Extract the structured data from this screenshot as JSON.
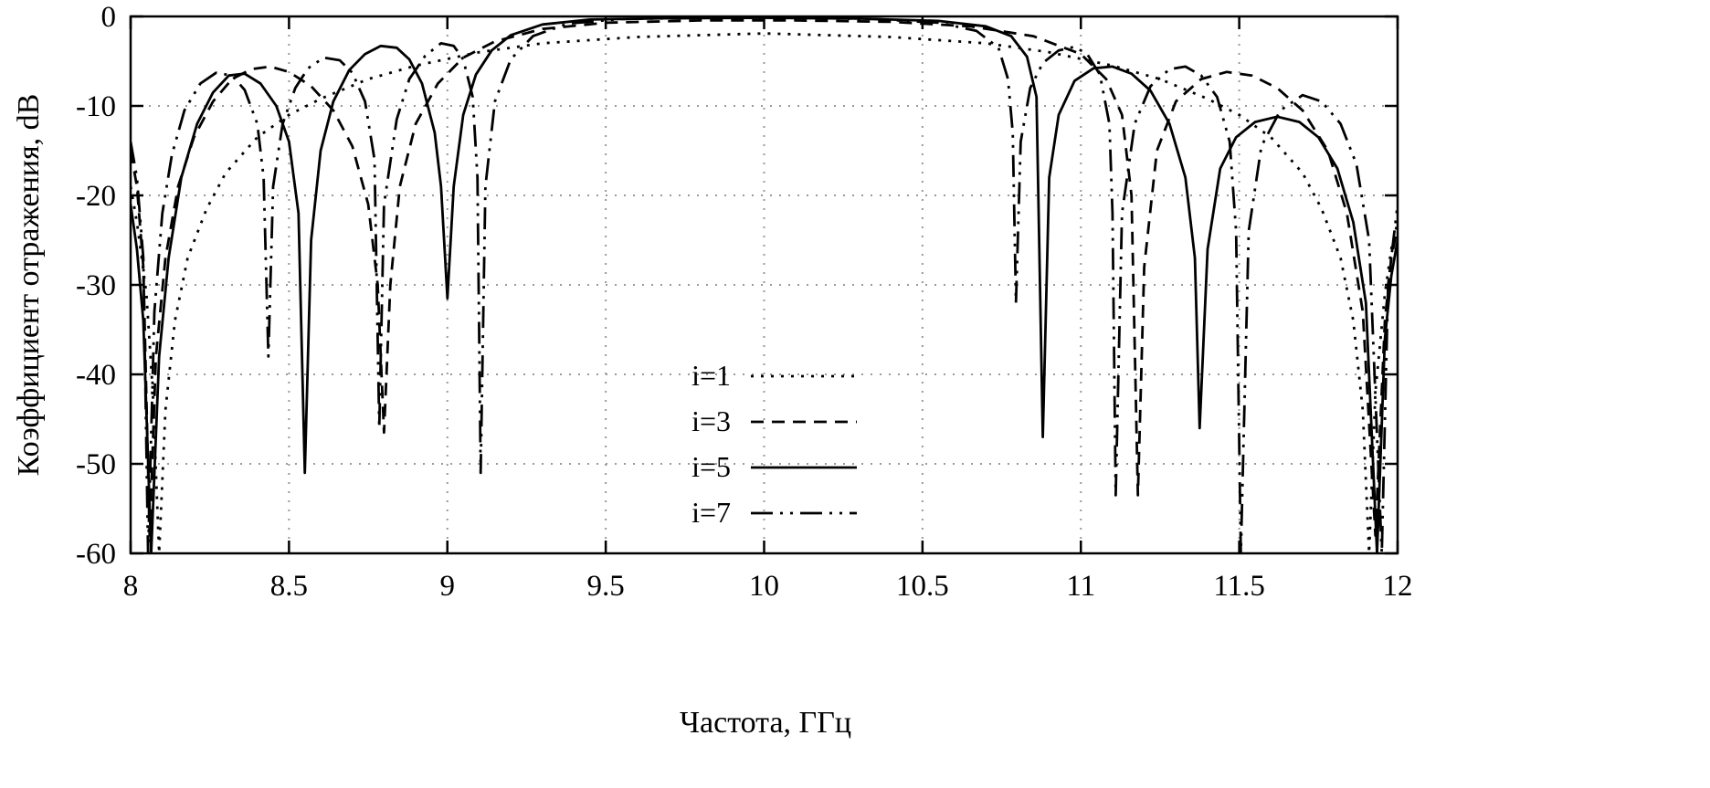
{
  "chart_data": {
    "type": "line",
    "title": "",
    "xlabel": "Частота, ГГц",
    "ylabel": "Коэффициент отражения, dB",
    "xlim": [
      8,
      12
    ],
    "ylim": [
      -60,
      0
    ],
    "grid": true,
    "legend_position": "center-bottom",
    "line_color": "#000000",
    "grid_color": "#999999",
    "xticks": [
      {
        "v": 8,
        "label": "8"
      },
      {
        "v": 8.5,
        "label": "8.5"
      },
      {
        "v": 9,
        "label": "9"
      },
      {
        "v": 9.5,
        "label": "9.5"
      },
      {
        "v": 10,
        "label": "10"
      },
      {
        "v": 10.5,
        "label": "10.5"
      },
      {
        "v": 11,
        "label": "11"
      },
      {
        "v": 11.5,
        "label": "11.5"
      },
      {
        "v": 12,
        "label": "12"
      }
    ],
    "yticks": [
      {
        "v": 0,
        "label": "0"
      },
      {
        "v": -10,
        "label": "-10"
      },
      {
        "v": -20,
        "label": "-20"
      },
      {
        "v": -30,
        "label": "-30"
      },
      {
        "v": -40,
        "label": "-40"
      },
      {
        "v": -50,
        "label": "-50"
      },
      {
        "v": -60,
        "label": "-60"
      }
    ],
    "series": [
      {
        "name": "i=1",
        "style": "dotted",
        "points": [
          [
            8.0,
            -19
          ],
          [
            8.02,
            -23
          ],
          [
            8.05,
            -31
          ],
          [
            8.07,
            -42
          ],
          [
            8.09,
            -60
          ],
          [
            8.11,
            -44
          ],
          [
            8.14,
            -34
          ],
          [
            8.18,
            -27
          ],
          [
            8.24,
            -21.5
          ],
          [
            8.3,
            -17.5
          ],
          [
            8.4,
            -13.5
          ],
          [
            8.5,
            -11
          ],
          [
            8.6,
            -9.2
          ],
          [
            8.75,
            -7
          ],
          [
            8.9,
            -5.5
          ],
          [
            9.1,
            -4
          ],
          [
            9.3,
            -3
          ],
          [
            9.6,
            -2.3
          ],
          [
            10.0,
            -1.9
          ],
          [
            10.4,
            -2.3
          ],
          [
            10.7,
            -3
          ],
          [
            10.9,
            -4
          ],
          [
            11.1,
            -5.5
          ],
          [
            11.25,
            -7
          ],
          [
            11.4,
            -9.2
          ],
          [
            11.5,
            -11
          ],
          [
            11.6,
            -13.5
          ],
          [
            11.7,
            -17.5
          ],
          [
            11.76,
            -21.5
          ],
          [
            11.82,
            -27
          ],
          [
            11.86,
            -34
          ],
          [
            11.89,
            -44
          ],
          [
            11.91,
            -60
          ],
          [
            11.93,
            -42
          ],
          [
            11.96,
            -31
          ],
          [
            11.98,
            -26
          ],
          [
            12.0,
            -23
          ]
        ]
      },
      {
        "name": "i=3",
        "style": "dashed",
        "points": [
          [
            8.0,
            -15
          ],
          [
            8.02,
            -19
          ],
          [
            8.04,
            -28
          ],
          [
            8.06,
            -58
          ],
          [
            8.08,
            -38
          ],
          [
            8.11,
            -27
          ],
          [
            8.15,
            -19
          ],
          [
            8.2,
            -13.5
          ],
          [
            8.26,
            -9.5
          ],
          [
            8.32,
            -7
          ],
          [
            8.38,
            -5.9
          ],
          [
            8.44,
            -5.6
          ],
          [
            8.5,
            -6.2
          ],
          [
            8.57,
            -7.8
          ],
          [
            8.64,
            -10.5
          ],
          [
            8.7,
            -14.5
          ],
          [
            8.75,
            -21
          ],
          [
            8.78,
            -30
          ],
          [
            8.8,
            -46.5
          ],
          [
            8.82,
            -30
          ],
          [
            8.85,
            -19
          ],
          [
            8.9,
            -12
          ],
          [
            8.97,
            -7.5
          ],
          [
            9.05,
            -4.6
          ],
          [
            9.15,
            -2.8
          ],
          [
            9.3,
            -1.4
          ],
          [
            9.5,
            -0.7
          ],
          [
            9.8,
            -0.45
          ],
          [
            10.1,
            -0.45
          ],
          [
            10.4,
            -0.6
          ],
          [
            10.65,
            -1.1
          ],
          [
            10.85,
            -2.2
          ],
          [
            11.0,
            -4.2
          ],
          [
            11.08,
            -7
          ],
          [
            11.13,
            -11
          ],
          [
            11.16,
            -20
          ],
          [
            11.18,
            -53.5
          ],
          [
            11.2,
            -28
          ],
          [
            11.24,
            -15
          ],
          [
            11.3,
            -9.5
          ],
          [
            11.38,
            -7
          ],
          [
            11.46,
            -6.2
          ],
          [
            11.54,
            -6.6
          ],
          [
            11.62,
            -8
          ],
          [
            11.7,
            -10.5
          ],
          [
            11.78,
            -15
          ],
          [
            11.84,
            -22
          ],
          [
            11.89,
            -33
          ],
          [
            11.93,
            -58
          ],
          [
            11.96,
            -34
          ],
          [
            11.98,
            -27
          ],
          [
            12.0,
            -23.5
          ]
        ]
      },
      {
        "name": "i=5",
        "style": "solid",
        "points": [
          [
            8.0,
            -21
          ],
          [
            8.02,
            -26
          ],
          [
            8.04,
            -34
          ],
          [
            8.065,
            -60
          ],
          [
            8.09,
            -38
          ],
          [
            8.12,
            -27
          ],
          [
            8.16,
            -18
          ],
          [
            8.21,
            -12
          ],
          [
            8.26,
            -8.5
          ],
          [
            8.31,
            -6.6
          ],
          [
            8.36,
            -6.4
          ],
          [
            8.41,
            -7.5
          ],
          [
            8.46,
            -10
          ],
          [
            8.5,
            -14
          ],
          [
            8.53,
            -22
          ],
          [
            8.55,
            -51
          ],
          [
            8.57,
            -25
          ],
          [
            8.6,
            -15
          ],
          [
            8.64,
            -9.5
          ],
          [
            8.69,
            -6
          ],
          [
            8.74,
            -4.2
          ],
          [
            8.79,
            -3.3
          ],
          [
            8.84,
            -3.5
          ],
          [
            8.88,
            -4.8
          ],
          [
            8.92,
            -7.5
          ],
          [
            8.96,
            -13
          ],
          [
            8.98,
            -19
          ],
          [
            9.0,
            -31.5
          ],
          [
            9.02,
            -19
          ],
          [
            9.05,
            -11
          ],
          [
            9.09,
            -6.5
          ],
          [
            9.14,
            -3.8
          ],
          [
            9.2,
            -2.1
          ],
          [
            9.3,
            -0.9
          ],
          [
            9.45,
            -0.35
          ],
          [
            9.7,
            -0.2
          ],
          [
            10.0,
            -0.15
          ],
          [
            10.3,
            -0.25
          ],
          [
            10.55,
            -0.5
          ],
          [
            10.7,
            -1.1
          ],
          [
            10.78,
            -2.2
          ],
          [
            10.83,
            -4.5
          ],
          [
            10.86,
            -9
          ],
          [
            10.88,
            -47
          ],
          [
            10.9,
            -18
          ],
          [
            10.93,
            -11
          ],
          [
            10.98,
            -7.2
          ],
          [
            11.04,
            -5.8
          ],
          [
            11.1,
            -5.6
          ],
          [
            11.16,
            -6.4
          ],
          [
            11.22,
            -8.3
          ],
          [
            11.28,
            -12
          ],
          [
            11.33,
            -18
          ],
          [
            11.36,
            -27
          ],
          [
            11.375,
            -46
          ],
          [
            11.4,
            -26
          ],
          [
            11.44,
            -17
          ],
          [
            11.49,
            -13.5
          ],
          [
            11.55,
            -11.8
          ],
          [
            11.62,
            -11.2
          ],
          [
            11.69,
            -11.8
          ],
          [
            11.75,
            -13.5
          ],
          [
            11.81,
            -17
          ],
          [
            11.86,
            -23
          ],
          [
            11.9,
            -32
          ],
          [
            11.935,
            -60
          ],
          [
            11.96,
            -36
          ],
          [
            11.98,
            -29
          ],
          [
            12.0,
            -25
          ]
        ]
      },
      {
        "name": "i=7",
        "style": "dash-dot-dot",
        "points": [
          [
            8.0,
            -14
          ],
          [
            8.02,
            -18
          ],
          [
            8.04,
            -27
          ],
          [
            8.055,
            -60
          ],
          [
            8.075,
            -33
          ],
          [
            8.1,
            -22
          ],
          [
            8.13,
            -15.5
          ],
          [
            8.17,
            -10.5
          ],
          [
            8.22,
            -7.5
          ],
          [
            8.27,
            -6.3
          ],
          [
            8.32,
            -6.6
          ],
          [
            8.36,
            -8.2
          ],
          [
            8.4,
            -12
          ],
          [
            8.42,
            -18
          ],
          [
            8.435,
            -38
          ],
          [
            8.45,
            -19
          ],
          [
            8.48,
            -12
          ],
          [
            8.52,
            -8
          ],
          [
            8.56,
            -5.8
          ],
          [
            8.61,
            -4.6
          ],
          [
            8.66,
            -4.9
          ],
          [
            8.7,
            -6.3
          ],
          [
            8.74,
            -9.5
          ],
          [
            8.77,
            -16
          ],
          [
            8.785,
            -46
          ],
          [
            8.8,
            -21
          ],
          [
            8.84,
            -11.5
          ],
          [
            8.88,
            -7
          ],
          [
            8.93,
            -4.4
          ],
          [
            8.98,
            -3.0
          ],
          [
            9.02,
            -3.3
          ],
          [
            9.05,
            -4.8
          ],
          [
            9.08,
            -9
          ],
          [
            9.095,
            -18
          ],
          [
            9.105,
            -51
          ],
          [
            9.12,
            -19
          ],
          [
            9.15,
            -9.5
          ],
          [
            9.2,
            -4.8
          ],
          [
            9.27,
            -2.2
          ],
          [
            9.38,
            -0.8
          ],
          [
            9.55,
            -0.3
          ],
          [
            9.8,
            -0.15
          ],
          [
            10.1,
            -0.15
          ],
          [
            10.35,
            -0.3
          ],
          [
            10.55,
            -0.7
          ],
          [
            10.67,
            -1.6
          ],
          [
            10.74,
            -3.5
          ],
          [
            10.77,
            -7
          ],
          [
            10.785,
            -13
          ],
          [
            10.795,
            -32
          ],
          [
            10.81,
            -14
          ],
          [
            10.84,
            -8
          ],
          [
            10.88,
            -5.2
          ],
          [
            10.93,
            -3.8
          ],
          [
            10.98,
            -3.4
          ],
          [
            11.02,
            -4.2
          ],
          [
            11.06,
            -6.5
          ],
          [
            11.09,
            -12
          ],
          [
            11.1,
            -22
          ],
          [
            11.11,
            -53.5
          ],
          [
            11.13,
            -22
          ],
          [
            11.17,
            -12
          ],
          [
            11.22,
            -7.8
          ],
          [
            11.28,
            -5.9
          ],
          [
            11.33,
            -5.6
          ],
          [
            11.38,
            -6.6
          ],
          [
            11.43,
            -9
          ],
          [
            11.47,
            -14
          ],
          [
            11.49,
            -24
          ],
          [
            11.505,
            -60
          ],
          [
            11.53,
            -24
          ],
          [
            11.57,
            -14.5
          ],
          [
            11.63,
            -10.5
          ],
          [
            11.7,
            -8.8
          ],
          [
            11.76,
            -9.5
          ],
          [
            11.82,
            -12
          ],
          [
            11.87,
            -16.5
          ],
          [
            11.91,
            -25
          ],
          [
            11.95,
            -60
          ],
          [
            11.97,
            -30
          ],
          [
            12.0,
            -21
          ]
        ]
      }
    ],
    "legend": {
      "items": [
        {
          "label": "i=1",
          "style": "dotted"
        },
        {
          "label": "i=3",
          "style": "dashed"
        },
        {
          "label": "i=5",
          "style": "solid"
        },
        {
          "label": "i=7",
          "style": "dash-dot-dot"
        }
      ]
    }
  }
}
